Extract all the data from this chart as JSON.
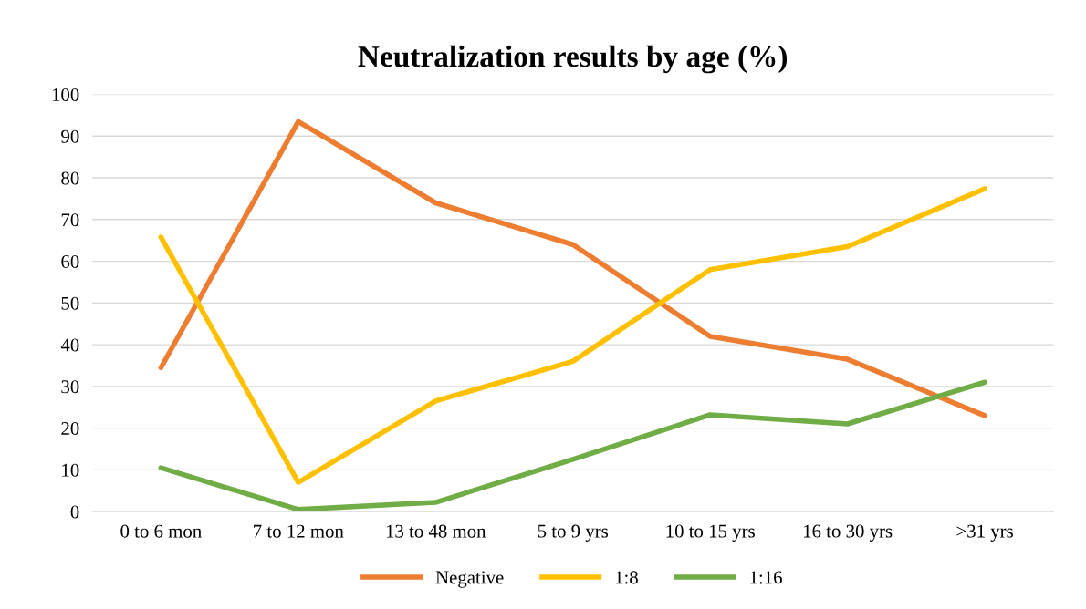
{
  "chart_data": {
    "type": "line",
    "title": "Neutralization results by age (%)",
    "categories": [
      "0 to 6 mon",
      "7 to 12 mon",
      "13 to 48 mon",
      "5 to 9 yrs",
      "10 to 15 yrs",
      "16 to 30 yrs",
      ">31 yrs"
    ],
    "series": [
      {
        "name": "Negative",
        "color": "#ed7d31",
        "values": [
          34.5,
          93.5,
          74,
          64,
          42,
          36.5,
          23
        ]
      },
      {
        "name": "1:8",
        "color": "#ffc000",
        "values": [
          65.8,
          7,
          26.5,
          36,
          58,
          63.5,
          77.4
        ]
      },
      {
        "name": "1:16",
        "color": "#70ad47",
        "values": [
          10.5,
          0.5,
          2.2,
          12.5,
          23.2,
          21,
          31
        ]
      }
    ],
    "ylim": [
      0,
      100
    ],
    "yticks": [
      0,
      10,
      20,
      30,
      40,
      50,
      60,
      70,
      80,
      90,
      100
    ],
    "grid": "y",
    "legend": "bottom",
    "marker": "none",
    "line_style": "solid"
  }
}
